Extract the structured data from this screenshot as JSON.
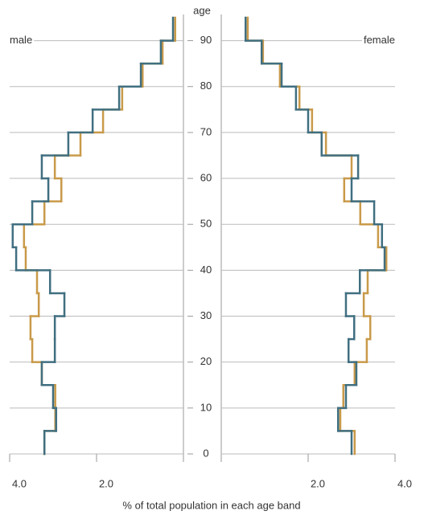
{
  "chart_data": {
    "type": "pyramid",
    "y_label": "age",
    "x_label": "% of total population in each age band",
    "bins": [
      0,
      5,
      10,
      15,
      20,
      25,
      30,
      35,
      40,
      45,
      50,
      55,
      60,
      65,
      70,
      75,
      80,
      85,
      90,
      95
    ],
    "ylim": [
      0,
      95
    ],
    "yticks": [
      0,
      10,
      20,
      30,
      40,
      50,
      60,
      70,
      80,
      90
    ],
    "xlim": [
      0,
      4
    ],
    "xticks": [
      {
        "value": 4,
        "label": "4.0"
      },
      {
        "value": 2,
        "label": "2.0"
      }
    ],
    "grid": true,
    "panels": [
      {
        "label": "male",
        "side": "left",
        "series": [
          {
            "color": "#c99a4a",
            "values": [
              3.2,
              2.95,
              2.95,
              3.26,
              3.48,
              3.52,
              3.33,
              3.37,
              3.63,
              3.67,
              3.2,
              2.81,
              2.96,
              2.37,
              1.85,
              1.41,
              0.94,
              0.48,
              0.19
            ]
          },
          {
            "color": "#406f80",
            "values": [
              3.2,
              2.93,
              3.0,
              3.26,
              2.96,
              2.96,
              2.74,
              3.07,
              3.85,
              3.93,
              3.48,
              3.11,
              3.26,
              2.65,
              2.09,
              1.48,
              0.98,
              0.52,
              0.24
            ]
          }
        ]
      },
      {
        "label": "female",
        "side": "right",
        "series": [
          {
            "color": "#c99a4a",
            "values": [
              3.07,
              2.74,
              2.81,
              3.07,
              3.35,
              3.43,
              3.28,
              3.37,
              3.8,
              3.61,
              3.2,
              2.83,
              3.0,
              2.41,
              2.09,
              1.8,
              1.35,
              0.96,
              0.61
            ]
          },
          {
            "color": "#406f80",
            "values": [
              3.0,
              2.69,
              2.87,
              3.11,
              2.93,
              3.06,
              2.87,
              3.19,
              3.76,
              3.7,
              3.52,
              3.0,
              3.15,
              2.31,
              2.0,
              1.72,
              1.39,
              0.93,
              0.56
            ]
          }
        ]
      }
    ]
  }
}
